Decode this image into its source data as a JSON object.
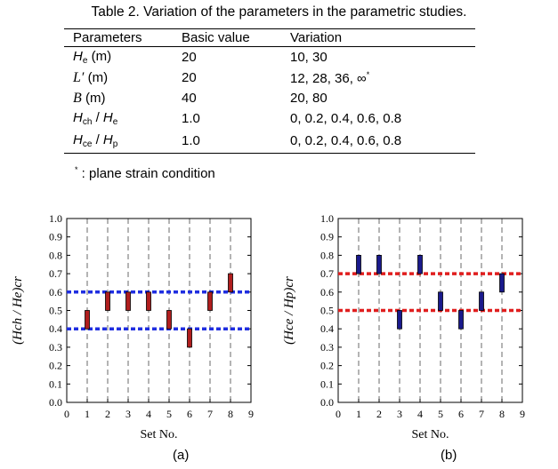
{
  "table": {
    "caption": "Table 2. Variation of the parameters in the parametric studies.",
    "headers": [
      "Parameters",
      "Basic value",
      "Variation"
    ],
    "rows": [
      {
        "symbol": "H",
        "sub": "e",
        "unit": " (m)",
        "basic": "20",
        "variation": "10, 30"
      },
      {
        "symbol": "L′",
        "sub": "",
        "unit": " (m)",
        "basic": "20",
        "variation": "12, 28, 36, ∞",
        "variation_sup": "*"
      },
      {
        "symbol": "B",
        "sub": "",
        "unit": " (m)",
        "basic": "40",
        "variation": "20, 80"
      },
      {
        "symbol": "H",
        "sub": "ch",
        "symbol2": "H",
        "sub2": "e",
        "basic": "1.0",
        "variation": "0, 0.2, 0.4, 0.6, 0.8"
      },
      {
        "symbol": "H",
        "sub": "ce",
        "symbol2": "H",
        "sub2": "p",
        "basic": "1.0",
        "variation": "0, 0.2, 0.4, 0.6, 0.8"
      }
    ],
    "footnote_mark": "*",
    "footnote": " : plane strain condition"
  },
  "chart_data": [
    {
      "type": "bar",
      "caption": "(a)",
      "xlabel": "Set No.",
      "ylabel": "(Hch / He)cr",
      "xlim": [
        0,
        9
      ],
      "ylim": [
        0,
        1.0
      ],
      "xticks": [
        "0",
        "1",
        "2",
        "3",
        "4",
        "5",
        "6",
        "7",
        "8",
        "9"
      ],
      "yticks": [
        "0.0",
        "0.1",
        "0.2",
        "0.3",
        "0.4",
        "0.5",
        "0.6",
        "0.7",
        "0.8",
        "0.9",
        "1.0"
      ],
      "ranges": [
        {
          "x": 1,
          "low": 0.4,
          "high": 0.5
        },
        {
          "x": 2,
          "low": 0.5,
          "high": 0.6
        },
        {
          "x": 3,
          "low": 0.5,
          "high": 0.6
        },
        {
          "x": 4,
          "low": 0.5,
          "high": 0.6
        },
        {
          "x": 5,
          "low": 0.4,
          "high": 0.5
        },
        {
          "x": 6,
          "low": 0.3,
          "high": 0.4
        },
        {
          "x": 7,
          "low": 0.5,
          "high": 0.6
        },
        {
          "x": 8,
          "low": 0.6,
          "high": 0.7
        }
      ],
      "hlines": [
        0.4,
        0.6
      ],
      "bar_color": "#b01e1e",
      "line_color": "#1f2ee0",
      "grid_vertical_dashed": true
    },
    {
      "type": "bar",
      "caption": "(b)",
      "xlabel": "Set No.",
      "ylabel": "(Hce / Hp)cr",
      "xlim": [
        0,
        9
      ],
      "ylim": [
        0,
        1.0
      ],
      "xticks": [
        "0",
        "1",
        "2",
        "3",
        "4",
        "5",
        "6",
        "7",
        "8",
        "9"
      ],
      "yticks": [
        "0.0",
        "0.1",
        "0.2",
        "0.3",
        "0.4",
        "0.5",
        "0.6",
        "0.7",
        "0.8",
        "0.9",
        "1.0"
      ],
      "ranges": [
        {
          "x": 1,
          "low": 0.7,
          "high": 0.8
        },
        {
          "x": 2,
          "low": 0.7,
          "high": 0.8
        },
        {
          "x": 3,
          "low": 0.4,
          "high": 0.5
        },
        {
          "x": 4,
          "low": 0.7,
          "high": 0.8
        },
        {
          "x": 5,
          "low": 0.5,
          "high": 0.6
        },
        {
          "x": 6,
          "low": 0.4,
          "high": 0.5
        },
        {
          "x": 7,
          "low": 0.5,
          "high": 0.6
        },
        {
          "x": 8,
          "low": 0.6,
          "high": 0.7
        }
      ],
      "hlines": [
        0.5,
        0.7
      ],
      "bar_color": "#1a1a8c",
      "line_color": "#e01e1e",
      "grid_vertical_dashed": true
    }
  ]
}
